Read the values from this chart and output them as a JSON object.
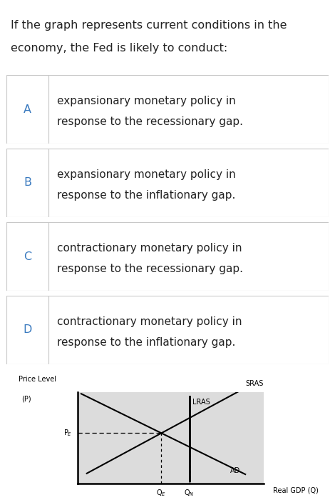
{
  "title_line1": "If the graph represents current conditions in the",
  "title_line2": "economy, the Fed is likely to conduct:",
  "options": [
    {
      "label": "A",
      "line1": "expansionary monetary policy in",
      "line2": "response to the recessionary gap."
    },
    {
      "label": "B",
      "line1": "expansionary monetary policy in",
      "line2": "response to the inflationary gap."
    },
    {
      "label": "C",
      "line1": "contractionary monetary policy in",
      "line2": "response to the recessionary gap."
    },
    {
      "label": "D",
      "line1": "contractionary monetary policy in",
      "line2": "response to the inflationary gap."
    }
  ],
  "label_color": "#3a7abf",
  "bg_color": "#ffffff",
  "graph_bg": "#dcdcdc",
  "border_color": "#c8c8c8",
  "text_color": "#222222",
  "title_fontsize": 11.5,
  "option_label_fontsize": 11.5,
  "option_text_fontsize": 11.0,
  "graph_label_fontsize": 7.0
}
